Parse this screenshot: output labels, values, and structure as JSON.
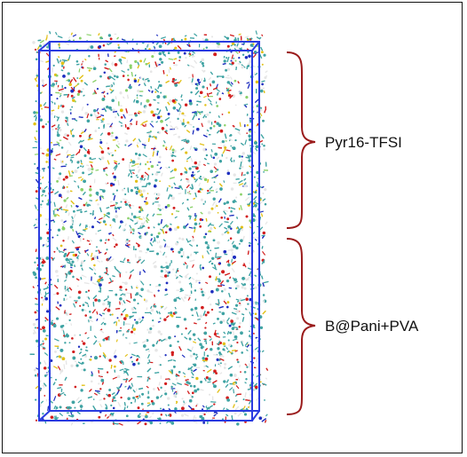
{
  "regions": [
    {
      "label": "Pyr16-TFSI"
    },
    {
      "label": "B@Pani+PVA"
    }
  ],
  "colors": {
    "frame": "#111111",
    "box": "#2a3be0",
    "brace": "#9a1b1b",
    "atom_carbon": "#3fa3a3",
    "atom_hydrogen": "#e6e6e6",
    "atom_oxygen": "#d21f1f",
    "atom_nitrogen": "#1f2fbf",
    "atom_sulfur": "#e2c11a",
    "atom_fluorine": "#8bd16a"
  }
}
